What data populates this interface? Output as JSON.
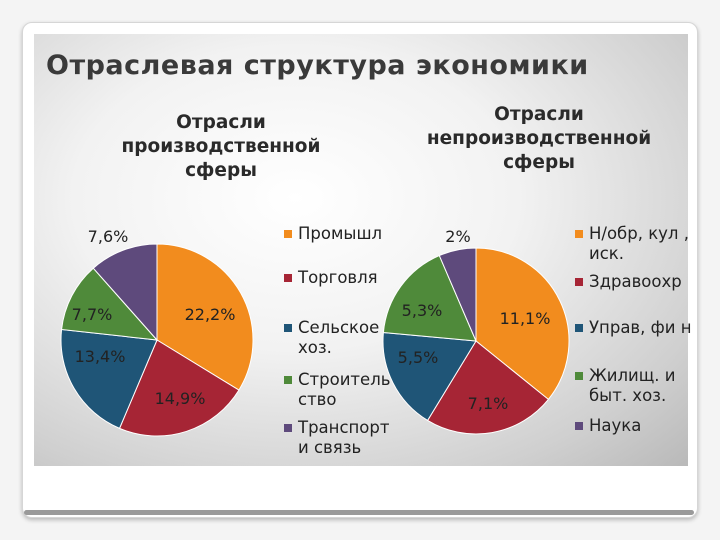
{
  "slide": {
    "title": "Отраслевая структура экономики"
  },
  "chart_data": [
    {
      "type": "pie",
      "title": "Отрасли производственной сферы",
      "categories": [
        "Промышл",
        "Торговля",
        "Сельское хоз.",
        "Строитель ство",
        "Транспорт и связь"
      ],
      "values": [
        22.2,
        14.9,
        13.4,
        7.7,
        7.6
      ],
      "labels": [
        "22,2%",
        "14,9%",
        "13,4%",
        "7,7%",
        "7,6%"
      ],
      "colors": [
        "#F28C1E",
        "#A62535",
        "#1F5577",
        "#4F8A3A",
        "#5E4A7C"
      ],
      "legend_placement": "right"
    },
    {
      "type": "pie",
      "title": "Отрасли непроизводственной сферы",
      "categories": [
        "Н/обр, кул , иск.",
        "Здравоохр",
        "Управ, фи н",
        "Жилищ. и быт. хоз.",
        "Наука"
      ],
      "values": [
        11.1,
        7.1,
        5.5,
        5.3,
        2
      ],
      "labels": [
        "11,1%",
        "7,1%",
        "5,5%",
        "5,3%",
        "2%"
      ],
      "colors": [
        "#F28C1E",
        "#A62535",
        "#1F5577",
        "#4F8A3A",
        "#5E4A7C"
      ],
      "legend_placement": "right"
    }
  ]
}
